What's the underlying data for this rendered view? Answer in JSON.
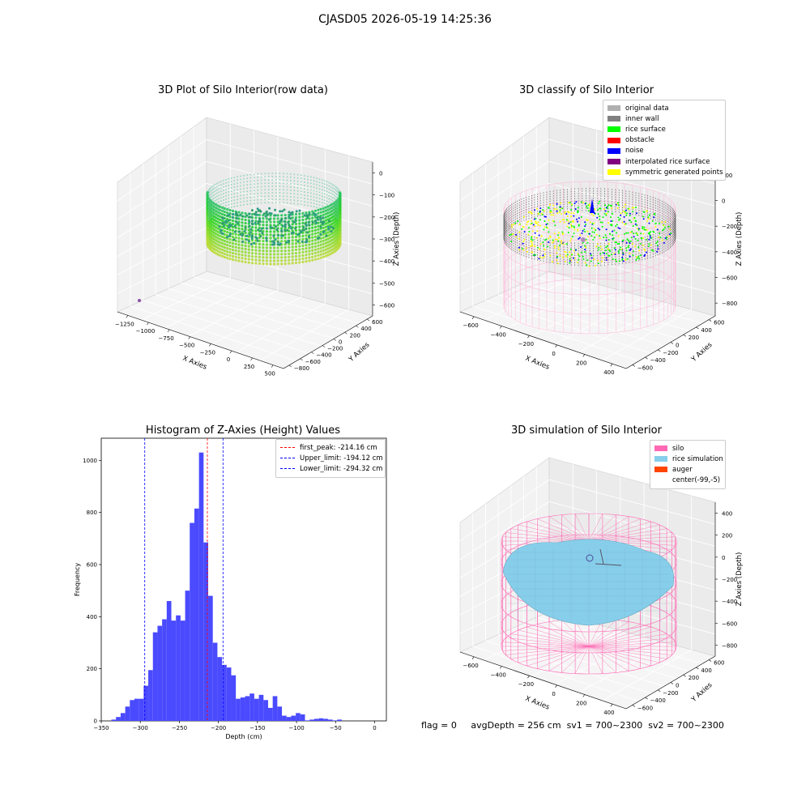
{
  "figure_title": "CJASD05 2026-05-19 14:25:36",
  "status": {
    "flag": "flag = 0",
    "avg_depth": "avgDepth = 256 cm",
    "sv1": "sv1 = 700~2300",
    "sv2": "sv2 = 700~2300"
  },
  "colors": {
    "histogram_bar": "#4a4aff",
    "peak_line": "#ff0000",
    "limit_line": "#0000ff",
    "silo_wire": "#ff69b4",
    "rice_simulation": "#87ceeb",
    "auger": "#ff4500",
    "rice_surface": "#00ff00",
    "noise": "#0000ff",
    "symmetric": "#ffff00"
  },
  "chart_data": [
    {
      "type": "scatter",
      "projection": "3d",
      "title": "3D Plot of Silo Interior(row data)",
      "xlabel": "X Axies",
      "ylabel": "Y Axies",
      "zlabel": "Z Axies (Depth)",
      "x_ticks": [
        "−1250",
        "−1000",
        "−750",
        "−500",
        "−250",
        "0",
        "250",
        "500"
      ],
      "y_ticks": [
        "600",
        "400",
        "200",
        "0",
        "−200",
        "−400",
        "−600",
        "−800"
      ],
      "z_ticks": [
        "0",
        "−100",
        "−200",
        "−300",
        "−400",
        "−500",
        "−600"
      ],
      "colormap": "viridis",
      "grid": true
    },
    {
      "type": "scatter",
      "projection": "3d",
      "title": "3D classify of Silo Interior",
      "xlabel": "X Axies",
      "ylabel": "Y Axies",
      "zlabel": "Z Axies (Depth)",
      "x_ticks": [
        "−600",
        "−400",
        "−200",
        "0",
        "200",
        "400"
      ],
      "y_ticks": [
        "600",
        "400",
        "200",
        "0",
        "−200",
        "−400",
        "−600"
      ],
      "z_ticks": [
        "200",
        "0",
        "−200",
        "−400",
        "−600",
        "−800"
      ],
      "legend_position": "top-right",
      "legend": [
        {
          "label": "original data",
          "color": "#b0b0b0"
        },
        {
          "label": "inner wall",
          "color": "#808080"
        },
        {
          "label": "rice surface",
          "color": "#00ff00"
        },
        {
          "label": "obstacle",
          "color": "#ff0000"
        },
        {
          "label": "noise",
          "color": "#0000ff"
        },
        {
          "label": "interpolated rice surface",
          "color": "#800080"
        },
        {
          "label": "symmetric generated points",
          "color": "#ffff00"
        }
      ],
      "grid": true
    },
    {
      "type": "bar",
      "title": "Histogram of Z-Axies (Height) Values",
      "xlabel": "Depth (cm)",
      "ylabel": "Frequency",
      "xlim": [
        -350,
        15
      ],
      "ylim": [
        0,
        1085
      ],
      "x_ticks": [
        -350,
        -300,
        -250,
        -200,
        -150,
        -100,
        -50,
        0
      ],
      "y_ticks": [
        0,
        200,
        400,
        600,
        800,
        1000
      ],
      "bin_start": -337,
      "bin_width": 5.9,
      "values": [
        5,
        15,
        30,
        55,
        80,
        85,
        85,
        135,
        195,
        340,
        365,
        390,
        460,
        385,
        405,
        385,
        500,
        760,
        815,
        1030,
        685,
        480,
        300,
        245,
        215,
        205,
        175,
        85,
        90,
        95,
        105,
        85,
        100,
        80,
        50,
        95,
        55,
        20,
        15,
        20,
        30,
        25,
        2,
        5,
        8,
        10,
        8,
        5,
        2,
        5
      ],
      "vlines": [
        {
          "label": "first_peak: -214.16 cm",
          "x": -214.16,
          "color": "#ff0000"
        },
        {
          "label": "Upper_limit: -194.12 cm",
          "x": -194.12,
          "color": "#0000ff"
        },
        {
          "label": "Lower_limit: -294.32 cm",
          "x": -294.32,
          "color": "#0000ff"
        }
      ],
      "legend_position": "top-right"
    },
    {
      "type": "surface",
      "projection": "3d",
      "title": "3D simulation of Silo Interior",
      "xlabel": "X Axies",
      "ylabel": "Y Axies",
      "zlabel": "Z Axies (Depth)",
      "x_ticks": [
        "−600",
        "−400",
        "−200",
        "0",
        "200",
        "400"
      ],
      "y_ticks": [
        "600",
        "400",
        "200",
        "0",
        "−200",
        "−400",
        "−600"
      ],
      "z_ticks": [
        "400",
        "200",
        "0",
        "−200",
        "−400",
        "−600",
        "−800"
      ],
      "legend_position": "top-right",
      "legend": [
        {
          "label": "silo",
          "color": "#ff69b4"
        },
        {
          "label": "rice simulation",
          "color": "#87ceeb"
        },
        {
          "label": "auger",
          "color": "#ff4500"
        },
        {
          "label": "center(-99,-5)",
          "color": "none"
        }
      ],
      "grid": true
    }
  ]
}
